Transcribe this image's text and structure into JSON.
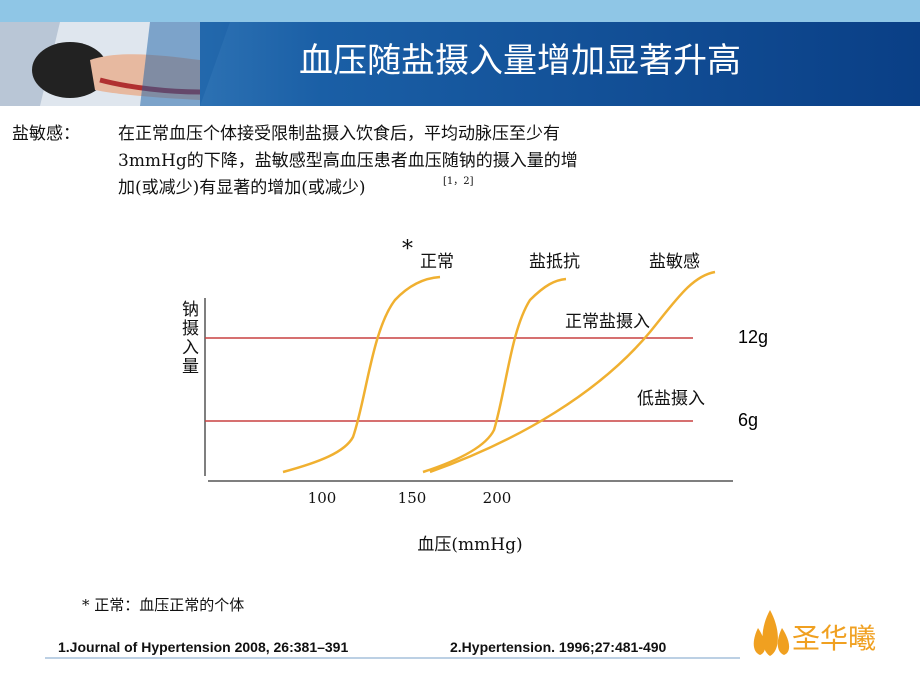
{
  "slide": {
    "title": "血压随盐摄入量增加显著升高",
    "definition": {
      "term": "盐敏感：",
      "lines": [
        "在正常血压个体接受限制盐摄入饮食后，平均动脉压至少有",
        "3mmHg的下降，盐敏感型高血压患者血压随钠的摄入量的增",
        "加(或减少)有显著的增加(或减少)"
      ],
      "citation": "[1，2]"
    },
    "diagram": {
      "curve_labels": {
        "star": "*",
        "normal": "正常",
        "resistant": "盐抵抗",
        "sensitive": "盐敏感"
      },
      "y_label": "钠摄入量",
      "x_label": "血压(mmHg)",
      "x_ticks": [
        "100",
        "150",
        "200"
      ],
      "lines": [
        {
          "label": "正常盐摄入",
          "amount": "12g"
        },
        {
          "label": "低盐摄入",
          "amount": "6g"
        }
      ]
    },
    "footnote": "* 正常：血压正常的个体",
    "references": [
      "1.Journal of Hypertension 2008, 26:381–391",
      "2.Hypertension. 1996;27:481-490"
    ],
    "logo": "圣华曦"
  }
}
